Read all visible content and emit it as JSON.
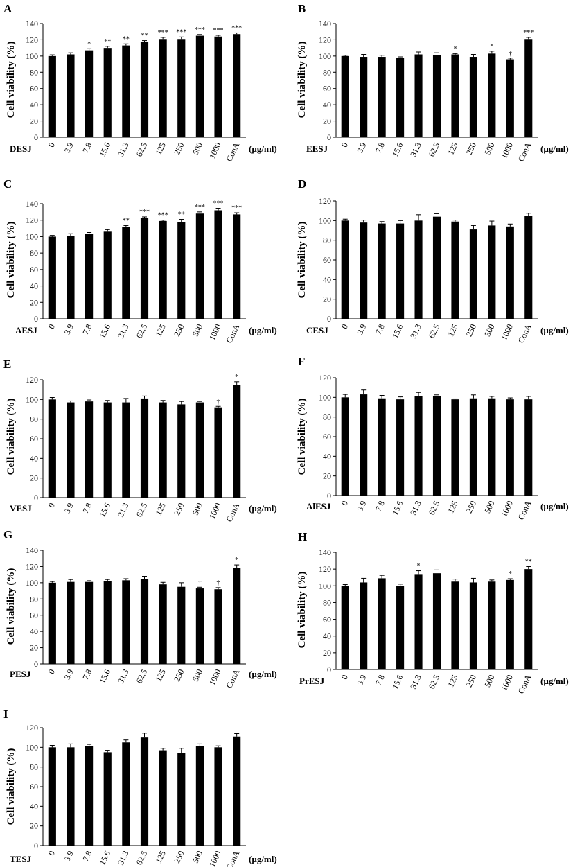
{
  "chart_data": [
    {
      "panel": "A",
      "type": "bar",
      "group_label": "DESJ",
      "unit_label": "(µg/ml)",
      "ylabel": "Cell viability (%)",
      "ylim": [
        0,
        140
      ],
      "yticks": [
        0,
        20,
        40,
        60,
        80,
        100,
        120,
        140
      ],
      "categories": [
        "0",
        "3.9",
        "7.8",
        "15.6",
        "31.3",
        "62.5",
        "125",
        "250",
        "500",
        "1000",
        "ConA"
      ],
      "values": [
        100,
        102,
        107,
        110,
        113,
        117,
        121,
        121,
        125,
        124,
        127
      ],
      "errors": [
        1.5,
        2,
        2,
        2,
        2,
        2,
        2,
        2.5,
        1.5,
        1.5,
        1.5
      ],
      "annotations": [
        "",
        "",
        "*",
        "**",
        "**",
        "**",
        "***",
        "***",
        "***",
        "***",
        "***"
      ]
    },
    {
      "panel": "B",
      "type": "bar",
      "group_label": "EESJ",
      "unit_label": "(µg/ml)",
      "ylabel": "Cell viability (%)",
      "ylim": [
        0,
        140
      ],
      "yticks": [
        0,
        20,
        40,
        60,
        80,
        100,
        120,
        140
      ],
      "categories": [
        "0",
        "3.9",
        "7.8",
        "15.6",
        "31.3",
        "62.5",
        "125",
        "250",
        "500",
        "1000",
        "ConA"
      ],
      "values": [
        100,
        99,
        99,
        98,
        102,
        101,
        102,
        99,
        103,
        96,
        121
      ],
      "errors": [
        1,
        3,
        2,
        1,
        3,
        3,
        1,
        3,
        3,
        1.5,
        2
      ],
      "annotations": [
        "",
        "",
        "",
        "",
        "",
        "",
        "*",
        "",
        "*",
        "†",
        "***"
      ]
    },
    {
      "panel": "C",
      "type": "bar",
      "group_label": "AESJ",
      "unit_label": "(µg/ml)",
      "ylabel": "Cell viability (%)",
      "ylim": [
        0,
        140
      ],
      "yticks": [
        0,
        20,
        40,
        60,
        80,
        100,
        120,
        140
      ],
      "categories": [
        "0",
        "3.9",
        "7.8",
        "15.6",
        "31.3",
        "62.5",
        "125",
        "250",
        "500",
        "1000",
        "ConA"
      ],
      "values": [
        100,
        101,
        103,
        106,
        112,
        123,
        119,
        118,
        128,
        132,
        127
      ],
      "errors": [
        1.5,
        2.5,
        2,
        2.5,
        1.5,
        1,
        1,
        3,
        2,
        2.5,
        2
      ],
      "annotations": [
        "",
        "",
        "",
        "",
        "**",
        "***",
        "***",
        "**",
        "***",
        "***",
        "***"
      ]
    },
    {
      "panel": "D",
      "type": "bar",
      "group_label": "CESJ",
      "unit_label": "(µg/ml)",
      "ylabel": "Cell viability (%)",
      "ylim": [
        0,
        120
      ],
      "yticks": [
        0,
        20,
        40,
        60,
        80,
        100,
        120
      ],
      "categories": [
        "0",
        "3.9",
        "7.8",
        "15.6",
        "31.3",
        "62.5",
        "125",
        "250",
        "500",
        "1000",
        "ConA"
      ],
      "values": [
        100,
        98,
        97,
        97,
        100,
        104,
        99,
        91,
        95,
        94,
        105
      ],
      "errors": [
        1.5,
        2.5,
        2,
        3,
        6,
        3,
        1.5,
        4,
        4.5,
        2.5,
        2.5
      ],
      "annotations": [
        "",
        "",
        "",
        "",
        "",
        "",
        "",
        "",
        "",
        "",
        ""
      ]
    },
    {
      "panel": "E",
      "type": "bar",
      "group_label": "VESJ",
      "unit_label": "(µg/ml)",
      "ylabel": "Cell viability (%)",
      "ylim": [
        0,
        120
      ],
      "yticks": [
        0,
        20,
        40,
        60,
        80,
        100,
        120
      ],
      "categories": [
        "0",
        "3.9",
        "7.8",
        "15.6",
        "31.3",
        "62.5",
        "125",
        "250",
        "500",
        "1000",
        "ConA"
      ],
      "values": [
        100,
        97,
        98,
        97,
        97,
        101,
        97,
        95,
        97,
        92,
        115
      ],
      "errors": [
        2,
        1.5,
        1.5,
        2,
        4,
        2.5,
        2,
        3,
        1,
        1,
        3
      ],
      "annotations": [
        "",
        "",
        "",
        "",
        "",
        "",
        "",
        "",
        "",
        "†",
        "*"
      ]
    },
    {
      "panel": "F",
      "type": "bar",
      "group_label": "AlESJ",
      "unit_label": "(µg/ml)",
      "ylabel": "Cell viability (%)",
      "ylim": [
        0,
        120
      ],
      "yticks": [
        0,
        20,
        40,
        60,
        80,
        100,
        120
      ],
      "categories": [
        "0",
        "3.9",
        "7.8",
        "15.6",
        "31.3",
        "62.5",
        "125",
        "250",
        "500",
        "1000",
        "ConA"
      ],
      "values": [
        100,
        103,
        99,
        98,
        101,
        101,
        98,
        99,
        99,
        98,
        98
      ],
      "errors": [
        3,
        4.5,
        3,
        2.5,
        4,
        1.5,
        0.5,
        3.5,
        2,
        1.5,
        3
      ],
      "annotations": [
        "",
        "",
        "",
        "",
        "",
        "",
        "",
        "",
        "",
        "",
        ""
      ]
    },
    {
      "panel": "G",
      "type": "bar",
      "group_label": "PESJ",
      "unit_label": "(µg/ml)",
      "ylabel": "Cell viability (%)",
      "ylim": [
        0,
        140
      ],
      "yticks": [
        0,
        20,
        40,
        60,
        80,
        100,
        120,
        140
      ],
      "categories": [
        "0",
        "3.9",
        "7.8",
        "15.6",
        "31.3",
        "62.5",
        "125",
        "250",
        "500",
        "1000",
        "ConA"
      ],
      "values": [
        100,
        101,
        101,
        102,
        103,
        105,
        98,
        95,
        93,
        92,
        118
      ],
      "errors": [
        1.5,
        3,
        1.5,
        2,
        2,
        3,
        2.5,
        5,
        1.5,
        2,
        4
      ],
      "annotations": [
        "",
        "",
        "",
        "",
        "",
        "",
        "",
        "",
        "†",
        "†",
        "*"
      ]
    },
    {
      "panel": "H",
      "type": "bar",
      "group_label": "PrESJ",
      "unit_label": "(µg/ml)",
      "ylabel": "Cell viability (%)",
      "ylim": [
        0,
        140
      ],
      "yticks": [
        0,
        20,
        40,
        60,
        80,
        100,
        120,
        140
      ],
      "categories": [
        "0",
        "3.9",
        "7.8",
        "15.6",
        "31.3",
        "62.5",
        "125",
        "250",
        "500",
        "1000",
        "ConA"
      ],
      "values": [
        100,
        104,
        109,
        100,
        114,
        115,
        105,
        104,
        105,
        107,
        120
      ],
      "errors": [
        1.5,
        5,
        3.5,
        2,
        4,
        4,
        3,
        5,
        2,
        1.5,
        3
      ],
      "annotations": [
        "",
        "",
        "",
        "",
        "*",
        "",
        "",
        "",
        "",
        "*",
        "**"
      ]
    },
    {
      "panel": "I",
      "type": "bar",
      "group_label": "TESJ",
      "unit_label": "(µg/ml)",
      "ylabel": "Cell viability (%)",
      "ylim": [
        0,
        120
      ],
      "yticks": [
        0,
        20,
        40,
        60,
        80,
        100,
        120
      ],
      "categories": [
        "0",
        "3.9",
        "7.8",
        "15.6",
        "31.3",
        "62.5",
        "125",
        "250",
        "500",
        "1000",
        "ConA"
      ],
      "values": [
        100,
        100,
        101,
        95,
        105,
        110,
        97,
        94,
        101,
        100,
        111
      ],
      "errors": [
        2,
        3.5,
        2,
        2,
        2.5,
        4.5,
        2,
        5,
        2.5,
        1.5,
        3
      ],
      "annotations": [
        "",
        "",
        "",
        "",
        "",
        "",
        "",
        "",
        "",
        "",
        ""
      ]
    }
  ]
}
